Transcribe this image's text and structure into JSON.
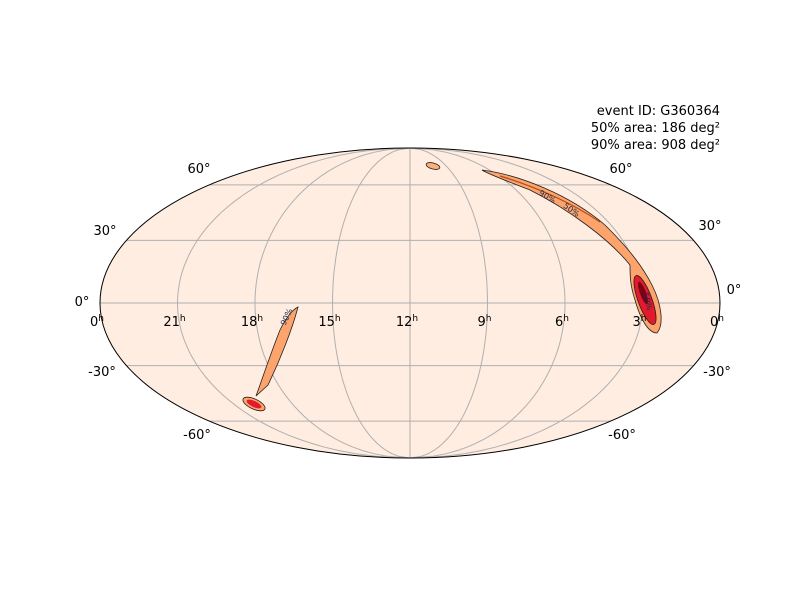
{
  "annotation": {
    "event_id": "event ID: G360364",
    "area_50": "50% area: 186 deg²",
    "area_90": "90% area: 908 deg²"
  },
  "ra_labels": [
    "0",
    "21",
    "18",
    "15",
    "12",
    "9",
    "6",
    "3",
    "0"
  ],
  "ra_unit": "h",
  "dec_labels": [
    "60°",
    "30°",
    "0°",
    "-30°",
    "-60°"
  ],
  "contour_labels": [
    "50%",
    "90%"
  ]
}
